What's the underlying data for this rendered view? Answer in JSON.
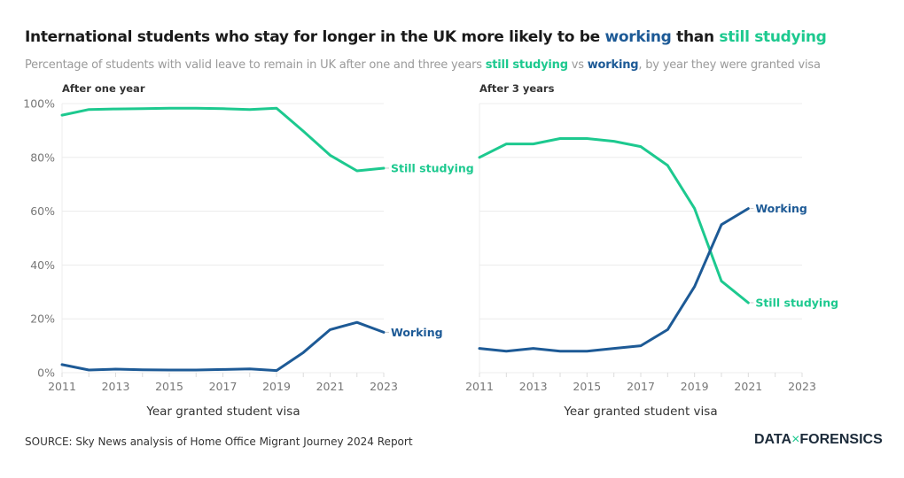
{
  "header": {
    "title_parts": [
      "International students who stay for longer in the UK more likely to be ",
      "working",
      " than ",
      "still studying"
    ],
    "subtitle_parts": [
      "Percentage of students with valid leave to remain in UK after one and three years ",
      "still studying",
      " vs ",
      "working",
      ", by year they were granted visa"
    ]
  },
  "footer": {
    "source": "SOURCE: Sky News analysis of Home Office Migrant Journey 2024 Report",
    "logo_left": "DATA",
    "logo_x": "×",
    "logo_right": "FORENSICS"
  },
  "colors": {
    "working": "#1d5a96",
    "still_studying": "#1dc98f"
  },
  "chart_data": [
    {
      "type": "line",
      "title": "After one year",
      "xlabel": "Year granted student visa",
      "ylabel": "",
      "x": [
        2011,
        2012,
        2013,
        2014,
        2015,
        2016,
        2017,
        2018,
        2019,
        2020,
        2021,
        2022,
        2023
      ],
      "xlim": [
        2011,
        2023
      ],
      "xticks": [
        2011,
        2013,
        2015,
        2017,
        2019,
        2021,
        2023
      ],
      "ylim": [
        0,
        100
      ],
      "yticks": [
        0,
        20,
        40,
        60,
        80,
        100
      ],
      "ytick_labels": [
        "0%",
        "20%",
        "40%",
        "60%",
        "80%",
        "100%"
      ],
      "grid": true,
      "series": [
        {
          "name": "Still studying",
          "key": "still_studying",
          "values": [
            95.7,
            97.8,
            98,
            98.1,
            98.3,
            98.3,
            98.1,
            97.8,
            98.3,
            89.7,
            80.8,
            75,
            76
          ]
        },
        {
          "name": "Working",
          "key": "working",
          "values": [
            3,
            1,
            1.3,
            1.1,
            1,
            1,
            1.2,
            1.4,
            0.8,
            7.5,
            16,
            18.7,
            15
          ]
        }
      ]
    },
    {
      "type": "line",
      "title": "After 3 years",
      "xlabel": "Year granted student visa",
      "ylabel": "",
      "x": [
        2011,
        2012,
        2013,
        2014,
        2015,
        2016,
        2017,
        2018,
        2019,
        2020,
        2021
      ],
      "xlim": [
        2011,
        2023
      ],
      "xticks": [
        2011,
        2013,
        2015,
        2017,
        2019,
        2021,
        2023
      ],
      "ylim": [
        0,
        100
      ],
      "yticks": [
        0,
        20,
        40,
        60,
        80,
        100
      ],
      "ytick_labels": [],
      "grid": true,
      "series": [
        {
          "name": "Still studying",
          "key": "still_studying",
          "values": [
            80,
            85,
            85,
            87,
            87,
            86,
            84,
            77,
            61,
            34,
            26
          ]
        },
        {
          "name": "Working",
          "key": "working",
          "values": [
            9,
            8,
            9,
            8,
            8,
            9,
            10,
            16,
            32,
            55,
            61
          ]
        }
      ]
    }
  ]
}
